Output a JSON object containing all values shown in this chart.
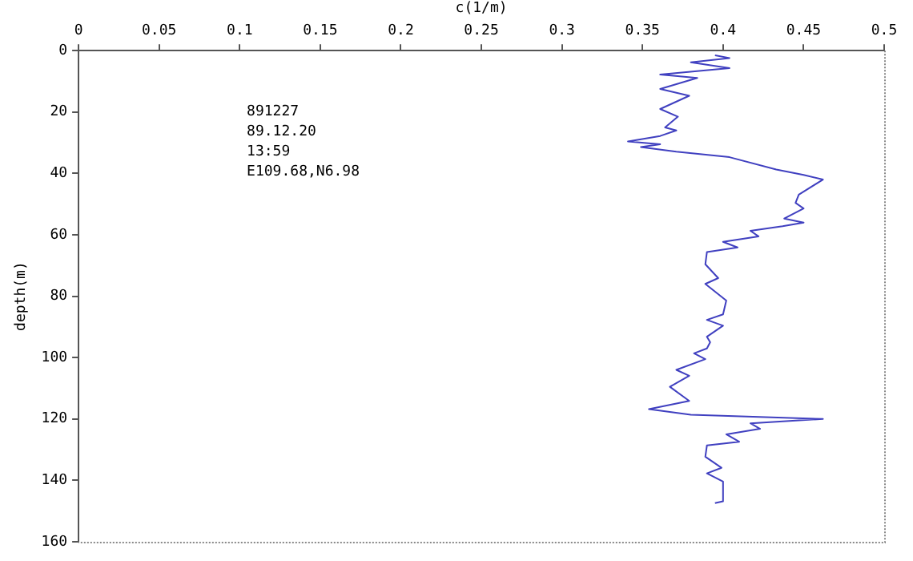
{
  "chart_data": {
    "type": "line",
    "xlabel": "c(1/m)",
    "ylabel": "depth(m)",
    "xlim": [
      0,
      0.5
    ],
    "xticks": [
      0,
      0.05,
      0.1,
      0.15,
      0.2,
      0.25,
      0.3,
      0.35,
      0.4,
      0.45,
      0.5
    ],
    "ylim": [
      160,
      0
    ],
    "yticks": [
      0,
      20,
      40,
      60,
      80,
      100,
      120,
      140,
      160
    ],
    "grid": false,
    "marker": "none",
    "line_style": "solid",
    "annotations": [
      "891227",
      "89.12.20",
      "13:59",
      "E109.68,N6.98"
    ],
    "series": [
      {
        "color": "#4040c0",
        "x": [
          0.395,
          0.404,
          0.38,
          0.404,
          0.361,
          0.384,
          0.361,
          0.379,
          0.361,
          0.372,
          0.364,
          0.371,
          0.361,
          0.341,
          0.361,
          0.349,
          0.371,
          0.404,
          0.433,
          0.45,
          0.462,
          0.447,
          0.445,
          0.45,
          0.438,
          0.45,
          0.437,
          0.417,
          0.422,
          0.4,
          0.409,
          0.39,
          0.389,
          0.397,
          0.389,
          0.402,
          0.4,
          0.39,
          0.4,
          0.39,
          0.392,
          0.39,
          0.382,
          0.389,
          0.371,
          0.379,
          0.367,
          0.379,
          0.354,
          0.38,
          0.462,
          0.417,
          0.423,
          0.402,
          0.41,
          0.39,
          0.389,
          0.399,
          0.39,
          0.4,
          0.4,
          0.395
        ],
        "values": [
          1.5,
          2.4,
          3.8,
          5.7,
          7.8,
          8.9,
          12.5,
          14.7,
          19,
          21.5,
          25,
          26,
          27.8,
          29.6,
          30.5,
          31.4,
          32.9,
          34.7,
          38.7,
          40.5,
          42,
          46.9,
          49.6,
          51.4,
          54.7,
          56,
          57.2,
          58.7,
          60.5,
          62.3,
          64.1,
          65.6,
          69.6,
          74.1,
          76,
          81.4,
          85.9,
          87.7,
          89.6,
          93.2,
          95,
          97,
          98.6,
          100.5,
          104,
          105.9,
          109.5,
          114.1,
          116.8,
          118.6,
          120,
          121.4,
          123.2,
          125,
          127.4,
          128.6,
          132.3,
          135.9,
          137.7,
          140.4,
          146.8,
          147.4
        ]
      }
    ]
  }
}
